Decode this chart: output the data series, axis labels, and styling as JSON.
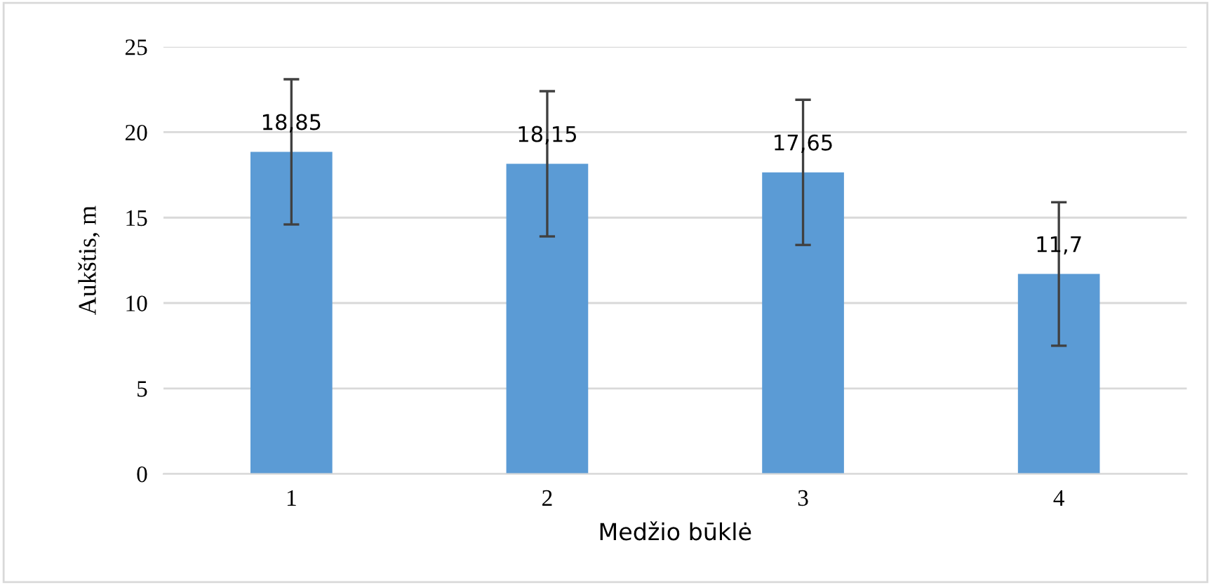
{
  "chart_data": {
    "type": "bar",
    "xlabel": "Medžio būklė",
    "ylabel": "Aukštis, m",
    "categories": [
      "1",
      "2",
      "3",
      "4"
    ],
    "values": [
      18.85,
      18.15,
      17.65,
      11.7
    ],
    "value_labels": [
      "18,85",
      "18,15",
      "17,65",
      "11,7"
    ],
    "errors": [
      4.25,
      4.25,
      4.25,
      4.2
    ],
    "color": "#5b9bd5",
    "ylim": [
      0,
      25
    ],
    "yticks": [
      0,
      5,
      10,
      15,
      20,
      25
    ],
    "grid": "y"
  }
}
